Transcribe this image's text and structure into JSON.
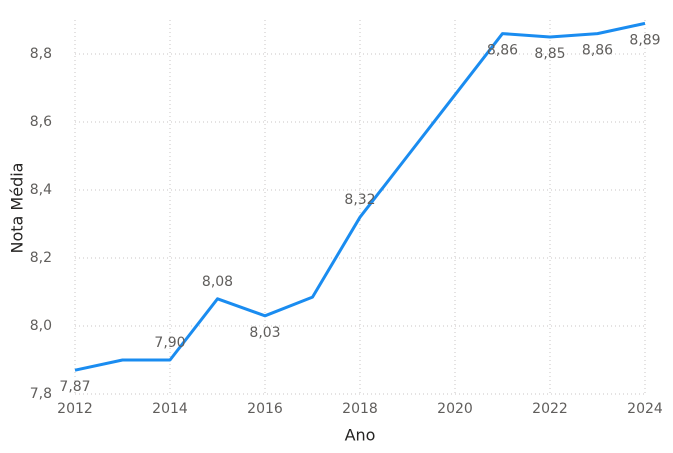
{
  "chart_data": {
    "type": "line",
    "x_label": "Ano",
    "y_label": "Nota Média",
    "x": [
      2012,
      2013,
      2014,
      2015,
      2016,
      2017,
      2018,
      2019,
      2020,
      2021,
      2022,
      2023,
      2024
    ],
    "series": [
      {
        "color": "#1A8CF0",
        "values": [
          7.87,
          7.9,
          7.9,
          8.08,
          8.03,
          8.085,
          8.32,
          8.5,
          8.68,
          8.86,
          8.85,
          8.86,
          8.89
        ],
        "value_labels": [
          "7,87",
          null,
          "7,90",
          "8,08",
          "8,03",
          null,
          "8,32",
          null,
          null,
          "8,86",
          "8,85",
          "8,86",
          "8,89"
        ]
      }
    ],
    "xlim": [
      2012,
      2024
    ],
    "xticks": [
      2012,
      2014,
      2016,
      2018,
      2020,
      2022,
      2024
    ],
    "ylim": [
      7.8,
      8.9
    ],
    "yticks": [
      {
        "value": 7.8,
        "label": "7,8"
      },
      {
        "value": 8.0,
        "label": "8,0"
      },
      {
        "value": 8.2,
        "label": "8,2"
      },
      {
        "value": 8.4,
        "label": "8,4"
      },
      {
        "value": 8.6,
        "label": "8,6"
      },
      {
        "value": 8.8,
        "label": "8,8"
      }
    ],
    "grid": true
  }
}
